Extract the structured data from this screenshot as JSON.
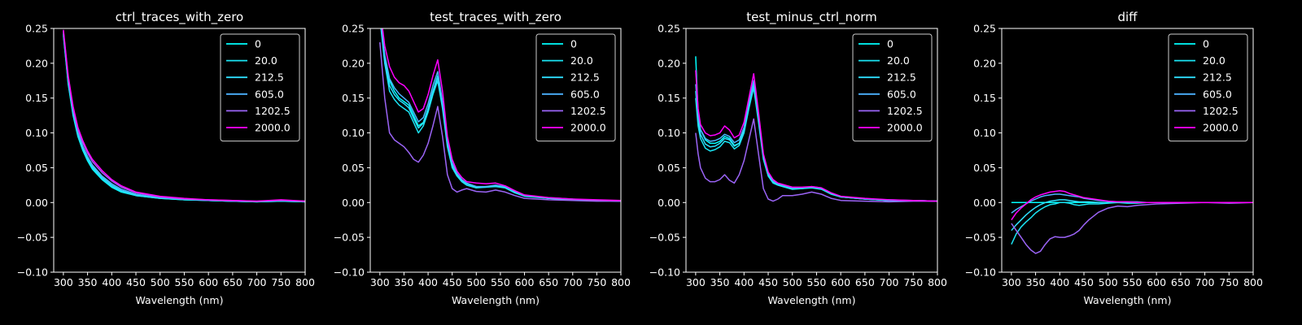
{
  "chart_data": [
    {
      "type": "line",
      "title": "ctrl_traces_with_zero",
      "xlabel": "Wavelength (nm)",
      "ylabel": "",
      "xlim": [
        280,
        800
      ],
      "ylim": [
        -0.1,
        0.25
      ],
      "xticks": [
        "300",
        "350",
        "400",
        "450",
        "500",
        "550",
        "600",
        "650",
        "700",
        "750",
        "800"
      ],
      "yticks": [
        "−0.10",
        "−0.05",
        "0.00",
        "0.05",
        "0.10",
        "0.15",
        "0.20",
        "0.25"
      ],
      "grid": false,
      "legend_position": "upper-right",
      "x": [
        300,
        310,
        320,
        330,
        340,
        350,
        360,
        380,
        400,
        420,
        450,
        500,
        550,
        600,
        650,
        700,
        750,
        800
      ],
      "series": [
        {
          "name": "0",
          "color": "#00ffff",
          "values": [
            0.24,
            0.17,
            0.125,
            0.095,
            0.075,
            0.06,
            0.048,
            0.033,
            0.022,
            0.015,
            0.01,
            0.006,
            0.004,
            0.003,
            0.002,
            0.001,
            0.002,
            0.001
          ]
        },
        {
          "name": "20.0",
          "color": "#1ae5f4",
          "values": [
            0.242,
            0.172,
            0.127,
            0.097,
            0.077,
            0.062,
            0.05,
            0.034,
            0.023,
            0.016,
            0.01,
            0.006,
            0.004,
            0.003,
            0.002,
            0.001,
            0.002,
            0.001
          ]
        },
        {
          "name": "212.5",
          "color": "#2ee0ff",
          "values": [
            0.243,
            0.174,
            0.129,
            0.099,
            0.079,
            0.064,
            0.052,
            0.036,
            0.025,
            0.017,
            0.011,
            0.007,
            0.004,
            0.003,
            0.002,
            0.001,
            0.003,
            0.001
          ]
        },
        {
          "name": "605.0",
          "color": "#4cb3ff",
          "values": [
            0.245,
            0.176,
            0.131,
            0.101,
            0.081,
            0.066,
            0.054,
            0.038,
            0.027,
            0.019,
            0.012,
            0.007,
            0.005,
            0.003,
            0.002,
            0.002,
            0.003,
            0.002
          ]
        },
        {
          "name": "1202.5",
          "color": "#9b64f6",
          "values": [
            0.246,
            0.18,
            0.135,
            0.105,
            0.086,
            0.071,
            0.059,
            0.043,
            0.031,
            0.022,
            0.014,
            0.008,
            0.005,
            0.004,
            0.003,
            0.002,
            0.003,
            0.002
          ]
        },
        {
          "name": "2000.0",
          "color": "#ff00ff",
          "values": [
            0.248,
            0.182,
            0.138,
            0.108,
            0.089,
            0.074,
            0.062,
            0.046,
            0.033,
            0.024,
            0.015,
            0.009,
            0.006,
            0.004,
            0.003,
            0.002,
            0.004,
            0.002
          ]
        }
      ]
    },
    {
      "type": "line",
      "title": "test_traces_with_zero",
      "xlabel": "Wavelength (nm)",
      "ylabel": "",
      "xlim": [
        280,
        800
      ],
      "ylim": [
        -0.1,
        0.25
      ],
      "xticks": [
        "300",
        "350",
        "400",
        "450",
        "500",
        "550",
        "600",
        "650",
        "700",
        "750",
        "800"
      ],
      "yticks": [
        "−0.10",
        "−0.05",
        "0.00",
        "0.05",
        "0.10",
        "0.15",
        "0.20",
        "0.25"
      ],
      "grid": false,
      "legend_position": "upper-right",
      "x": [
        300,
        310,
        320,
        330,
        340,
        350,
        360,
        370,
        380,
        390,
        400,
        410,
        420,
        430,
        440,
        450,
        460,
        470,
        480,
        500,
        520,
        540,
        560,
        580,
        600,
        650,
        700,
        750,
        800
      ],
      "series": [
        {
          "name": "0",
          "color": "#00ffff",
          "values": [
            0.27,
            0.21,
            0.175,
            0.16,
            0.15,
            0.145,
            0.14,
            0.125,
            0.11,
            0.115,
            0.135,
            0.16,
            0.182,
            0.14,
            0.085,
            0.055,
            0.04,
            0.032,
            0.027,
            0.022,
            0.022,
            0.024,
            0.022,
            0.015,
            0.01,
            0.006,
            0.004,
            0.003,
            0.002
          ]
        },
        {
          "name": "20.0",
          "color": "#1ae5f4",
          "values": [
            0.265,
            0.2,
            0.16,
            0.148,
            0.14,
            0.135,
            0.13,
            0.115,
            0.1,
            0.11,
            0.13,
            0.155,
            0.175,
            0.135,
            0.08,
            0.05,
            0.038,
            0.03,
            0.025,
            0.021,
            0.022,
            0.023,
            0.021,
            0.014,
            0.009,
            0.006,
            0.004,
            0.003,
            0.002
          ]
        },
        {
          "name": "212.5",
          "color": "#2ee0ff",
          "values": [
            0.268,
            0.205,
            0.168,
            0.155,
            0.147,
            0.142,
            0.136,
            0.121,
            0.107,
            0.114,
            0.134,
            0.16,
            0.18,
            0.139,
            0.084,
            0.054,
            0.04,
            0.032,
            0.027,
            0.022,
            0.023,
            0.024,
            0.022,
            0.015,
            0.01,
            0.006,
            0.004,
            0.003,
            0.002
          ]
        },
        {
          "name": "605.0",
          "color": "#4cb3ff",
          "values": [
            0.272,
            0.212,
            0.178,
            0.165,
            0.156,
            0.15,
            0.144,
            0.13,
            0.116,
            0.122,
            0.142,
            0.168,
            0.188,
            0.145,
            0.088,
            0.057,
            0.042,
            0.033,
            0.028,
            0.023,
            0.023,
            0.025,
            0.023,
            0.016,
            0.01,
            0.007,
            0.005,
            0.003,
            0.003
          ]
        },
        {
          "name": "1202.5",
          "color": "#9b64f6",
          "values": [
            0.23,
            0.15,
            0.1,
            0.09,
            0.085,
            0.08,
            0.072,
            0.062,
            0.058,
            0.068,
            0.085,
            0.11,
            0.138,
            0.095,
            0.04,
            0.02,
            0.015,
            0.018,
            0.02,
            0.016,
            0.015,
            0.018,
            0.015,
            0.01,
            0.006,
            0.004,
            0.003,
            0.002,
            0.002
          ]
        },
        {
          "name": "2000.0",
          "color": "#ff00ff",
          "values": [
            0.28,
            0.225,
            0.195,
            0.18,
            0.172,
            0.168,
            0.16,
            0.145,
            0.13,
            0.135,
            0.155,
            0.182,
            0.205,
            0.16,
            0.095,
            0.062,
            0.045,
            0.036,
            0.03,
            0.028,
            0.027,
            0.028,
            0.024,
            0.017,
            0.011,
            0.007,
            0.005,
            0.004,
            0.003
          ]
        }
      ]
    },
    {
      "type": "line",
      "title": "test_minus_ctrl_norm",
      "xlabel": "Wavelength (nm)",
      "ylabel": "",
      "xlim": [
        280,
        800
      ],
      "ylim": [
        -0.1,
        0.25
      ],
      "xticks": [
        "300",
        "350",
        "400",
        "450",
        "500",
        "550",
        "600",
        "650",
        "700",
        "750",
        "800"
      ],
      "yticks": [
        "−0.10",
        "−0.05",
        "0.00",
        "0.05",
        "0.10",
        "0.15",
        "0.20",
        "0.25"
      ],
      "grid": false,
      "legend_position": "upper-right",
      "x": [
        300,
        305,
        310,
        320,
        330,
        340,
        350,
        360,
        370,
        380,
        390,
        400,
        410,
        420,
        430,
        440,
        450,
        460,
        470,
        480,
        500,
        520,
        540,
        560,
        580,
        600,
        650,
        700,
        750,
        800
      ],
      "series": [
        {
          "name": "0",
          "color": "#00ffff",
          "values": [
            0.21,
            0.13,
            0.105,
            0.09,
            0.085,
            0.085,
            0.088,
            0.095,
            0.092,
            0.082,
            0.085,
            0.105,
            0.14,
            0.17,
            0.12,
            0.065,
            0.04,
            0.03,
            0.026,
            0.024,
            0.02,
            0.02,
            0.022,
            0.02,
            0.013,
            0.008,
            0.005,
            0.003,
            0.003,
            0.002
          ]
        },
        {
          "name": "20.0",
          "color": "#1ae5f4",
          "values": [
            0.15,
            0.11,
            0.092,
            0.078,
            0.074,
            0.076,
            0.08,
            0.088,
            0.086,
            0.077,
            0.082,
            0.1,
            0.135,
            0.165,
            0.115,
            0.062,
            0.038,
            0.028,
            0.025,
            0.023,
            0.019,
            0.02,
            0.021,
            0.019,
            0.012,
            0.008,
            0.005,
            0.003,
            0.003,
            0.002
          ]
        },
        {
          "name": "212.5",
          "color": "#2ee0ff",
          "values": [
            0.16,
            0.118,
            0.098,
            0.084,
            0.08,
            0.081,
            0.085,
            0.092,
            0.09,
            0.081,
            0.085,
            0.104,
            0.14,
            0.17,
            0.12,
            0.065,
            0.04,
            0.03,
            0.026,
            0.024,
            0.02,
            0.021,
            0.022,
            0.02,
            0.013,
            0.008,
            0.005,
            0.003,
            0.003,
            0.002
          ]
        },
        {
          "name": "605.0",
          "color": "#4cb3ff",
          "values": [
            0.17,
            0.125,
            0.105,
            0.092,
            0.088,
            0.089,
            0.092,
            0.098,
            0.095,
            0.086,
            0.09,
            0.108,
            0.145,
            0.175,
            0.124,
            0.068,
            0.042,
            0.031,
            0.027,
            0.025,
            0.021,
            0.021,
            0.023,
            0.021,
            0.014,
            0.009,
            0.005,
            0.004,
            0.003,
            0.002
          ]
        },
        {
          "name": "1202.5",
          "color": "#9b64f6",
          "values": [
            0.1,
            0.07,
            0.05,
            0.035,
            0.03,
            0.03,
            0.033,
            0.04,
            0.032,
            0.028,
            0.04,
            0.06,
            0.09,
            0.12,
            0.07,
            0.02,
            0.005,
            0.002,
            0.005,
            0.01,
            0.01,
            0.012,
            0.015,
            0.012,
            0.006,
            0.003,
            0.002,
            0.001,
            0.002,
            0.002
          ]
        },
        {
          "name": "2000.0",
          "color": "#ff00ff",
          "values": [
            0.19,
            0.135,
            0.112,
            0.1,
            0.096,
            0.097,
            0.1,
            0.11,
            0.104,
            0.093,
            0.097,
            0.115,
            0.15,
            0.185,
            0.13,
            0.07,
            0.044,
            0.033,
            0.028,
            0.026,
            0.022,
            0.022,
            0.023,
            0.021,
            0.014,
            0.009,
            0.006,
            0.004,
            0.003,
            0.002
          ]
        }
      ]
    },
    {
      "type": "line",
      "title": "diff",
      "xlabel": "Wavelength (nm)",
      "ylabel": "",
      "xlim": [
        280,
        800
      ],
      "ylim": [
        -0.1,
        0.25
      ],
      "xticks": [
        "300",
        "350",
        "400",
        "450",
        "500",
        "550",
        "600",
        "650",
        "700",
        "750",
        "800"
      ],
      "yticks": [
        "−0.10",
        "−0.05",
        "0.00",
        "0.05",
        "0.10",
        "0.15",
        "0.20",
        "0.25"
      ],
      "grid": false,
      "legend_position": "upper-right",
      "x": [
        300,
        310,
        320,
        330,
        340,
        350,
        360,
        370,
        380,
        390,
        400,
        410,
        420,
        430,
        440,
        450,
        460,
        480,
        500,
        520,
        540,
        560,
        580,
        600,
        650,
        700,
        750,
        800
      ],
      "series": [
        {
          "name": "0",
          "color": "#00ffff",
          "values": [
            0.0,
            0.0,
            0.0,
            0.0,
            0.0,
            0.0,
            0.0,
            0.0,
            0.0,
            0.0,
            0.0,
            0.0,
            0.0,
            0.0,
            0.0,
            0.0,
            0.0,
            0.0,
            0.0,
            0.0,
            0.0,
            0.0,
            0.0,
            0.0,
            0.0,
            0.0,
            0.0,
            0.0
          ]
        },
        {
          "name": "20.0",
          "color": "#1ae5f4",
          "values": [
            -0.06,
            -0.045,
            -0.035,
            -0.028,
            -0.022,
            -0.015,
            -0.01,
            -0.006,
            -0.003,
            -0.002,
            0.0,
            0.0,
            -0.001,
            -0.003,
            -0.004,
            -0.003,
            -0.002,
            -0.002,
            -0.001,
            0.0,
            -0.001,
            -0.001,
            0.0,
            0.0,
            0.0,
            0.0,
            0.0,
            0.0
          ]
        },
        {
          "name": "212.5",
          "color": "#2ee0ff",
          "values": [
            -0.04,
            -0.032,
            -0.025,
            -0.018,
            -0.012,
            -0.007,
            -0.003,
            0.0,
            0.002,
            0.003,
            0.004,
            0.004,
            0.003,
            0.002,
            0.001,
            0.001,
            0.001,
            0.0,
            0.0,
            0.0,
            0.0,
            0.0,
            0.0,
            0.0,
            0.0,
            0.0,
            0.0,
            0.0
          ]
        },
        {
          "name": "605.0",
          "color": "#4cb3ff",
          "values": [
            -0.015,
            -0.01,
            -0.006,
            -0.002,
            0.002,
            0.005,
            0.008,
            0.01,
            0.011,
            0.012,
            0.012,
            0.011,
            0.01,
            0.009,
            0.008,
            0.006,
            0.005,
            0.003,
            0.002,
            0.001,
            0.001,
            0.001,
            0.0,
            0.0,
            0.0,
            0.0,
            0.0,
            0.0
          ]
        },
        {
          "name": "1202.5",
          "color": "#9b64f6",
          "values": [
            -0.03,
            -0.04,
            -0.05,
            -0.06,
            -0.068,
            -0.073,
            -0.07,
            -0.06,
            -0.052,
            -0.049,
            -0.05,
            -0.05,
            -0.048,
            -0.045,
            -0.04,
            -0.032,
            -0.025,
            -0.014,
            -0.008,
            -0.005,
            -0.006,
            -0.004,
            -0.003,
            -0.002,
            -0.001,
            0.0,
            -0.001,
            0.0
          ]
        },
        {
          "name": "2000.0",
          "color": "#ff00ff",
          "values": [
            -0.025,
            -0.015,
            -0.008,
            -0.002,
            0.004,
            0.008,
            0.011,
            0.013,
            0.015,
            0.016,
            0.017,
            0.016,
            0.013,
            0.011,
            0.009,
            0.007,
            0.006,
            0.004,
            0.002,
            0.001,
            0.001,
            0.0,
            0.0,
            0.0,
            0.0,
            0.0,
            0.0,
            0.0
          ]
        }
      ]
    }
  ]
}
